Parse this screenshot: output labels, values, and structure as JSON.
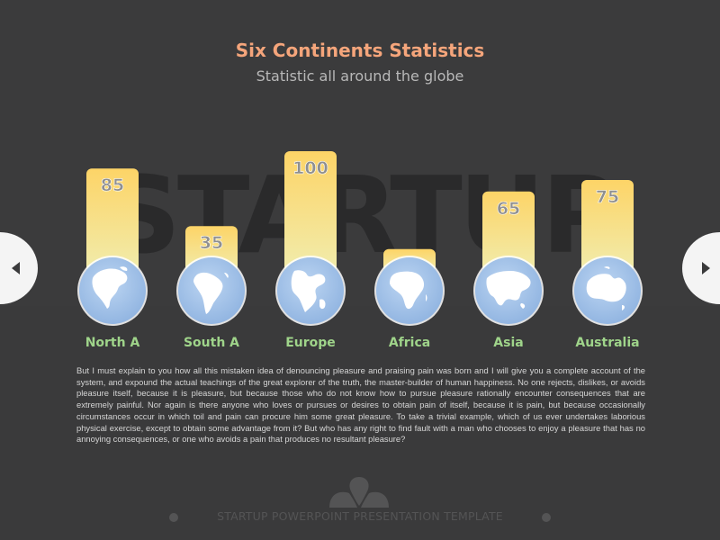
{
  "background_word": "STARTUP",
  "chart_data": {
    "type": "bar",
    "title": "Six Continents Statistics",
    "subtitle": "Statistic all around the globe",
    "categories": [
      "North A",
      "South A",
      "Europe",
      "Africa",
      "Asia",
      "Australia"
    ],
    "values": [
      85,
      35,
      100,
      15,
      65,
      75
    ],
    "ylim": [
      0,
      100
    ],
    "grid": false,
    "colors": {
      "bar_top": "#fdd467",
      "bar_bottom": "#f1ecac",
      "label": "#9fd48a",
      "value_text": "#8f8f8f",
      "globe": "#a5c4ea"
    }
  },
  "paragraph": "But I must explain to you how all this mistaken idea of denouncing pleasure and praising pain was born and I will give you a complete account of the system, and expound the actual teachings of the great explorer of the truth, the master-builder of human happiness. No one rejects, dislikes, or avoids pleasure itself, because it is pleasure, but because those who do not know how to pursue pleasure rationally encounter consequences that are extremely painful. Nor again is there anyone who loves or pursues or desires to obtain pain of itself, because it is pain, but because occasionally circumstances occur in which toil and pain can procure him some great pleasure. To take a trivial example, which of us ever undertakes laborious physical exercise, except to obtain some advantage from it? But who has any right to find fault with a man who chooses to enjoy a pleasure that has no annoying consequences, or one who avoids a pain that produces no resultant pleasure?",
  "footer": {
    "text": "STARTUP POWERPOINT PRESENTATION TEMPLATE"
  },
  "nav": {
    "prev_icon": "chevron-left-icon",
    "next_icon": "chevron-right-icon"
  }
}
